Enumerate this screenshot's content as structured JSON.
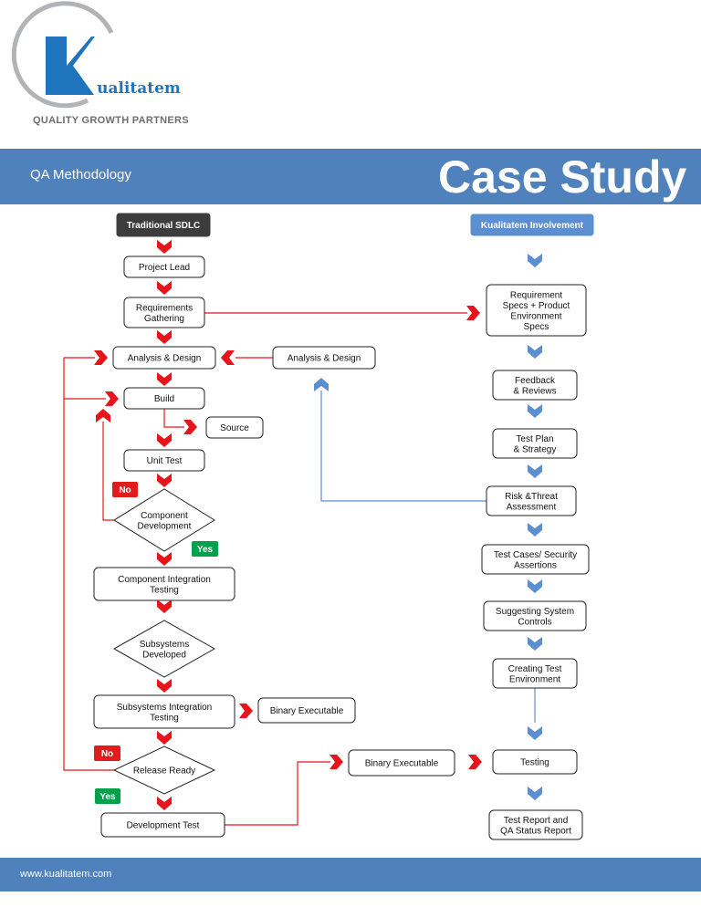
{
  "header": {
    "brand": "Kualitatem",
    "tagline": "QUALITY GROWTH PARTNERS",
    "subtitle": "QA Methodology",
    "title": "Case Study"
  },
  "footer": {
    "url": "www.kualitatem.com"
  },
  "colors": {
    "band": "#4f81bd",
    "red_arrow": "#e8141c",
    "blue_arrow": "#5b8fd1",
    "no_badge": "#e21b1b",
    "yes_badge": "#00a14b",
    "dark_box": "#3c3c3c"
  },
  "left": {
    "header": "Traditional SDLC",
    "project_lead": "Project Lead",
    "requirements": [
      "Requirements",
      "Gathering"
    ],
    "analysis": "Analysis & Design",
    "analysis_side": "Analysis & Design",
    "build": "Build",
    "source": "Source",
    "unit_test": "Unit Test",
    "component_dev": [
      "Component",
      "Development"
    ],
    "no1": "No",
    "yes1": "Yes",
    "component_int": [
      "Component Integration",
      "Testing"
    ],
    "subsystems_dev": [
      "Subsystems",
      "Developed"
    ],
    "subsystems_int": [
      "Subsystems Integration",
      "Testing"
    ],
    "binary1": "Binary Executable",
    "no2": "No",
    "release_ready": "Release Ready",
    "yes2": "Yes",
    "dev_test": "Development Test",
    "binary2": "Binary Executable"
  },
  "right": {
    "header": "Kualitatem Involvement",
    "req_specs": [
      "Requirement",
      "Specs + Product",
      "Environment",
      "Specs"
    ],
    "feedback": [
      "Feedback",
      "& Reviews"
    ],
    "test_plan": [
      "Test Plan",
      "& Strategy"
    ],
    "risk": [
      "Risk &Threat",
      "Assessment"
    ],
    "test_cases": [
      "Test Cases/ Security",
      "Assertions"
    ],
    "controls": [
      "Suggesting System",
      "Controls"
    ],
    "test_env": [
      "Creating Test",
      "Environment"
    ],
    "testing": "Testing",
    "report": [
      "Test Report and",
      "QA Status Report"
    ]
  }
}
